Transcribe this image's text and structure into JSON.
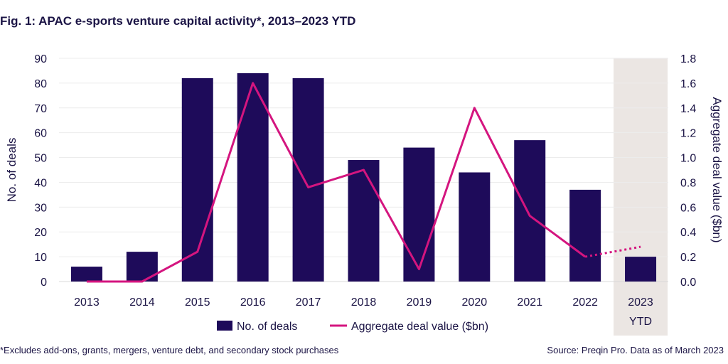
{
  "title": "Fig. 1: APAC e-sports venture capital activity*, 2013–2023 YTD",
  "footnote": "*Excludes add-ons, grants, mergers, venture debt, and secondary stock purchases",
  "source": "Source: Preqin Pro. Data as of March 2023",
  "colors": {
    "bar": "#1e0b5a",
    "line": "#d4157f",
    "highlight": "#ebe6e3",
    "grid": "#ececec",
    "text": "#1b1445"
  },
  "chart_data": {
    "type": "bar",
    "categories": [
      "2013",
      "2014",
      "2015",
      "2016",
      "2017",
      "2018",
      "2019",
      "2020",
      "2021",
      "2022",
      "2023"
    ],
    "category_sublabels": [
      "",
      "",
      "",
      "",
      "",
      "",
      "",
      "",
      "",
      "",
      "YTD"
    ],
    "highlighted_category": "2023",
    "series": [
      {
        "name": "No. of deals",
        "kind": "bar",
        "axis": "left",
        "values": [
          6,
          12,
          82,
          84,
          82,
          49,
          54,
          44,
          57,
          37,
          10
        ]
      },
      {
        "name": "Aggregate deal value ($bn)",
        "kind": "line",
        "axis": "right",
        "values": [
          0.0,
          0.0,
          0.24,
          1.6,
          0.76,
          0.9,
          0.1,
          1.4,
          0.53,
          0.2,
          0.28
        ],
        "dashed_last_segment": true
      }
    ],
    "ylabel": "No. of deals",
    "ylim": [
      0,
      90
    ],
    "yticks": [
      0,
      10,
      20,
      30,
      40,
      50,
      60,
      70,
      80,
      90
    ],
    "ylabel_right": "Aggregate deal value ($bn)",
    "ylim_right": [
      0,
      1.8
    ],
    "yticks_right": [
      "0.0",
      "0.2",
      "0.4",
      "0.6",
      "0.8",
      "1.0",
      "1.2",
      "1.4",
      "1.6",
      "1.8"
    ],
    "legend": [
      "No. of deals",
      "Aggregate deal value ($bn)"
    ],
    "legend_position": "bottom-center",
    "grid": true
  }
}
